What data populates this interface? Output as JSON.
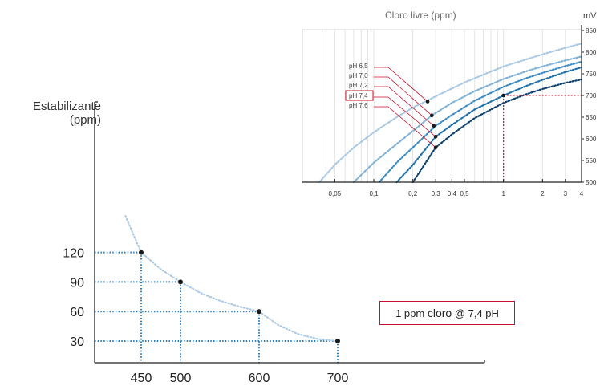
{
  "chart_data": [
    {
      "type": "line",
      "ylabel_line1": "Estabilizante",
      "ylabel_line2": "(ppm)",
      "xlabel": "",
      "x_ticks": [
        450,
        500,
        600,
        700
      ],
      "y_ticks": [
        30,
        60,
        90,
        120
      ],
      "xlim": [
        395,
        750
      ],
      "ylim": [
        15,
        180
      ],
      "grid": false,
      "series": [
        {
          "color": "#a9c8e4",
          "x": [
            430,
            450,
            475,
            500,
            525,
            550,
            575,
            600,
            625,
            650,
            675,
            700
          ],
          "y": [
            157,
            120,
            103,
            90,
            79,
            71,
            65,
            60,
            46,
            37,
            32,
            30
          ]
        }
      ],
      "points": [
        {
          "x": 450,
          "y": 120
        },
        {
          "x": 500,
          "y": 90
        },
        {
          "x": 600,
          "y": 60
        },
        {
          "x": 700,
          "y": 30
        }
      ],
      "annotation": {
        "text_before": "1 ppm ",
        "text_big": "cloro",
        "text_after": "  @ 7,4 pH",
        "border_color": "#c8102e"
      }
    },
    {
      "type": "line",
      "title": "Cloro livre (ppm)",
      "ylabel": "mV",
      "x_scale": "log",
      "x_ticks": [
        "0,05",
        "0,1",
        "0,2",
        "0,3",
        "0,4",
        "0,5",
        "1",
        "2",
        "3",
        "4"
      ],
      "y_ticks": [
        500,
        550,
        600,
        650,
        700,
        750,
        800,
        850
      ],
      "ylim": [
        500,
        850
      ],
      "xlim": [
        0.02,
        4
      ],
      "grid": true,
      "series": [
        {
          "name": "pH 6,5",
          "color": "#a9c8e4",
          "x": [
            0.038,
            0.05,
            0.07,
            0.1,
            0.15,
            0.2,
            0.25,
            0.3,
            0.5,
            1,
            2,
            3,
            4
          ],
          "y": [
            500,
            540,
            580,
            615,
            650,
            672,
            686,
            698,
            730,
            767,
            795,
            810,
            820
          ]
        },
        {
          "name": "pH 7,0",
          "color": "#7fb1d6",
          "x": [
            0.07,
            0.1,
            0.15,
            0.2,
            0.28,
            0.4,
            0.6,
            1,
            1.5,
            2,
            3,
            4
          ],
          "y": [
            500,
            545,
            588,
            618,
            654,
            683,
            710,
            738,
            756,
            767,
            781,
            790
          ]
        },
        {
          "name": "pH 7,2",
          "color": "#3c8ac2",
          "x": [
            0.11,
            0.15,
            0.2,
            0.3,
            0.4,
            0.6,
            1,
            1.5,
            2,
            3,
            4
          ],
          "y": [
            500,
            545,
            580,
            630,
            655,
            688,
            720,
            740,
            752,
            768,
            778
          ]
        },
        {
          "name": "pH 7,4",
          "color": "#1e6fa8",
          "x": [
            0.15,
            0.2,
            0.3,
            0.4,
            0.6,
            1,
            1.5,
            2,
            3,
            4
          ],
          "y": [
            500,
            540,
            605,
            632,
            668,
            700,
            722,
            736,
            754,
            765
          ]
        },
        {
          "name": "pH 7,6",
          "color": "#0d3f6e",
          "x": [
            0.2,
            0.3,
            0.4,
            0.6,
            1,
            1.5,
            2,
            3,
            4
          ],
          "y": [
            500,
            580,
            610,
            648,
            683,
            703,
            715,
            729,
            737
          ]
        }
      ],
      "points": [
        {
          "x": 0.26,
          "y": 686
        },
        {
          "x": 0.28,
          "y": 654
        },
        {
          "x": 0.29,
          "y": 630
        },
        {
          "x": 0.3,
          "y": 605
        },
        {
          "x": 0.3,
          "y": 580
        },
        {
          "x": 1,
          "y": 700
        }
      ],
      "highlight": {
        "series": "pH 7,4",
        "x": 1,
        "y": 700,
        "color": "#c8102e"
      }
    }
  ]
}
